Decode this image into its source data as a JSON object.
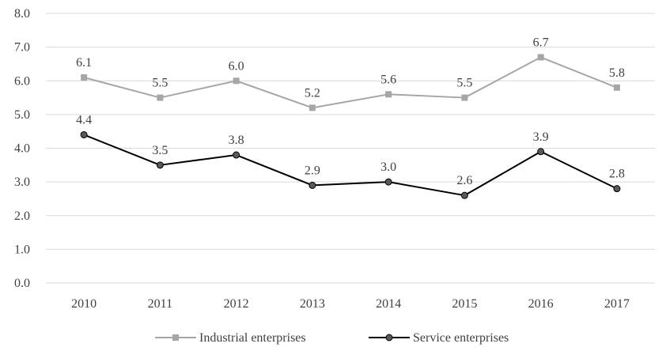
{
  "chart_data": {
    "type": "line",
    "title": "",
    "xlabel": "",
    "ylabel": "",
    "categories": [
      "2010",
      "2011",
      "2012",
      "2013",
      "2014",
      "2015",
      "2016",
      "2017"
    ],
    "ylim": [
      0,
      8
    ],
    "yticks": [
      "0.0",
      "1.0",
      "2.0",
      "3.0",
      "4.0",
      "5.0",
      "6.0",
      "7.0",
      "8.0"
    ],
    "grid": true,
    "legend_position": "bottom",
    "series": [
      {
        "name": "Industrial enterprises",
        "values": [
          6.1,
          5.5,
          6.0,
          5.2,
          5.6,
          5.5,
          6.7,
          5.8
        ],
        "labels": [
          "6.1",
          "5.5",
          "6.0",
          "5.2",
          "5.6",
          "5.5",
          "6.7",
          "5.8"
        ],
        "color": "#a6a6a6",
        "marker": "square"
      },
      {
        "name": "Service enterprises",
        "values": [
          4.4,
          3.5,
          3.8,
          2.9,
          3.0,
          2.6,
          3.9,
          2.8
        ],
        "labels": [
          "4.4",
          "3.5",
          "3.8",
          "2.9",
          "3.0",
          "2.6",
          "3.9",
          "2.8"
        ],
        "color": "#000000",
        "marker": "circle",
        "marker_fill": "#595959"
      }
    ]
  }
}
